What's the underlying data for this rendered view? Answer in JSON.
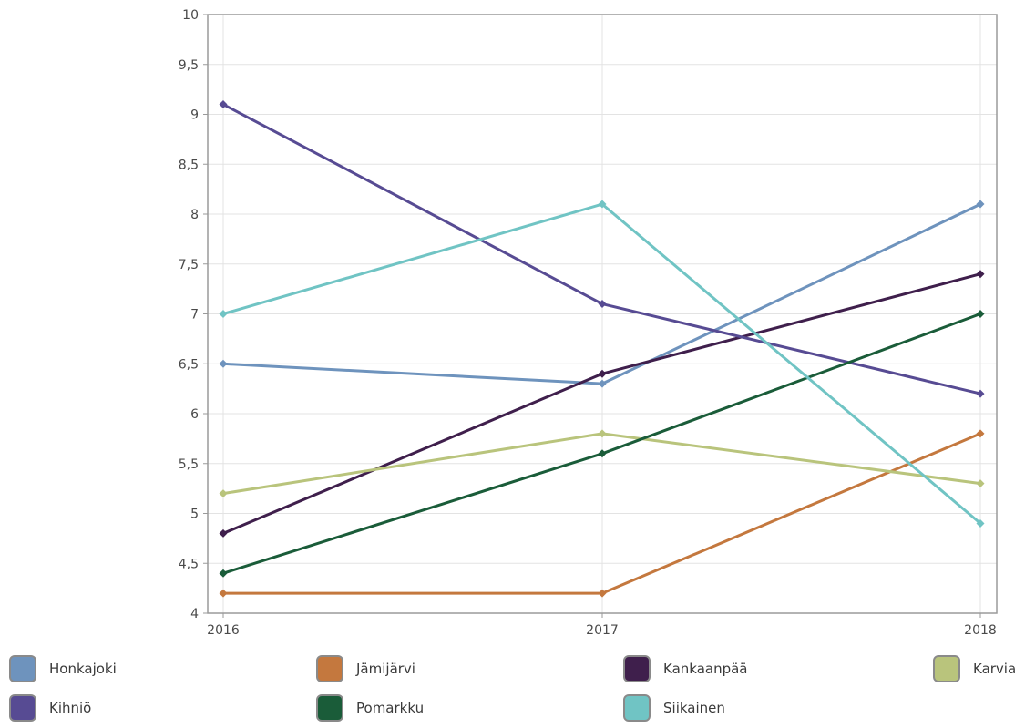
{
  "chart_data": {
    "type": "line",
    "title": "",
    "xlabel": "",
    "ylabel": "",
    "categories": [
      "2016",
      "2017",
      "2018"
    ],
    "ylim": [
      4,
      10
    ],
    "yticks": [
      "4",
      "4,5",
      "5",
      "5,5",
      "6",
      "6,5",
      "7",
      "7,5",
      "8",
      "8,5",
      "9",
      "9,5",
      "10"
    ],
    "grid": true,
    "legend_position": "bottom",
    "series": [
      {
        "name": "Honkajoki",
        "color": "#6e93bd",
        "values": [
          6.5,
          6.3,
          8.1
        ]
      },
      {
        "name": "Jämijärvi",
        "color": "#c4783e",
        "values": [
          4.2,
          4.2,
          5.8
        ]
      },
      {
        "name": "Kankaanpää",
        "color": "#3f1f4c",
        "values": [
          4.8,
          6.4,
          7.4
        ]
      },
      {
        "name": "Karvia",
        "color": "#b9c47c",
        "values": [
          5.2,
          5.8,
          5.3
        ]
      },
      {
        "name": "Kihniö",
        "color": "#574b93",
        "values": [
          9.1,
          7.1,
          6.2
        ]
      },
      {
        "name": "Pomarkku",
        "color": "#1a5c39",
        "values": [
          4.4,
          5.6,
          7.0
        ]
      },
      {
        "name": "Siikainen",
        "color": "#70c4c4",
        "values": [
          7.0,
          8.1,
          4.9
        ]
      }
    ]
  }
}
